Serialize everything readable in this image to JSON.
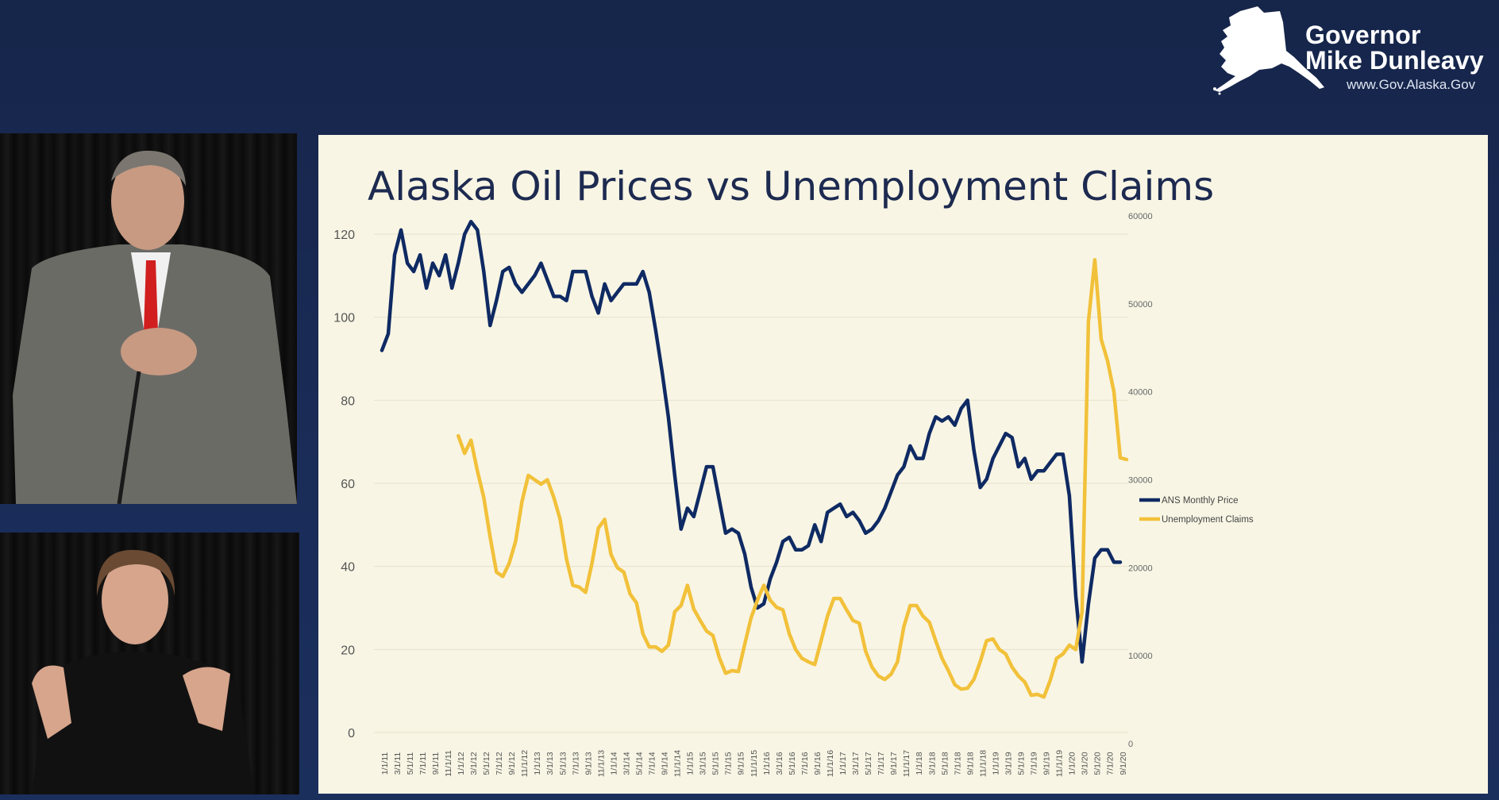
{
  "brand": {
    "line1": "Governor",
    "line2": "Mike Dunleavy",
    "url": "www.Gov.Alaska.Gov",
    "icon": "alaska-state-map-icon"
  },
  "slide": {
    "title": "Alaska Oil Prices vs Unemployment Claims"
  },
  "colors": {
    "background": "#1a2c58",
    "slide_background": "#f8f5e4",
    "oil_series": "#0f2a63",
    "claims_series": "#f2c13a",
    "title_text": "#1d2a50"
  },
  "chart_data": {
    "type": "line",
    "title": "Alaska Oil Prices vs Unemployment Claims",
    "x_tick_labels": [
      "1/1/11",
      "3/1/11",
      "5/1/11",
      "7/1/11",
      "9/1/11",
      "11/1/11",
      "1/1/12",
      "3/1/12",
      "5/1/12",
      "7/1/12",
      "9/1/12",
      "11/1/12",
      "1/1/13",
      "3/1/13",
      "5/1/13",
      "7/1/13",
      "9/1/13",
      "11/1/13",
      "1/1/14",
      "3/1/14",
      "5/1/14",
      "7/1/14",
      "9/1/14",
      "11/1/14",
      "1/1/15",
      "3/1/15",
      "5/1/15",
      "7/1/15",
      "9/1/15",
      "11/1/15",
      "1/1/16",
      "3/1/16",
      "5/1/16",
      "7/1/16",
      "9/1/16",
      "11/1/16",
      "1/1/17",
      "3/1/17",
      "5/1/17",
      "7/1/17",
      "9/1/17",
      "11/1/17",
      "1/1/18",
      "3/1/18",
      "5/1/18",
      "7/1/18",
      "9/1/18",
      "11/1/18",
      "1/1/19",
      "3/1/19",
      "5/1/19",
      "7/1/19",
      "9/1/19",
      "11/1/19",
      "1/1/20",
      "3/1/20",
      "5/1/20",
      "7/1/20",
      "9/1/20"
    ],
    "left_axis": {
      "ticks": [
        "0",
        "20",
        "40",
        "60",
        "80",
        "100",
        "120"
      ],
      "ylim": [
        0,
        120
      ]
    },
    "right_axis": {
      "ticks": [
        "0",
        "10000",
        "20000",
        "30000",
        "40000",
        "50000",
        "60000"
      ],
      "ylim": [
        0,
        60000
      ]
    },
    "grid": true,
    "legend_position": "right",
    "series": [
      {
        "name": "ANS Monthly Price",
        "axis": "left",
        "start_date": "2011-01-01",
        "values": [
          92,
          96,
          115,
          121,
          113,
          111,
          115,
          107,
          113,
          110,
          115,
          107,
          113,
          120,
          123,
          121,
          111,
          98,
          104,
          111,
          112,
          108,
          106,
          108,
          110,
          113,
          109,
          105,
          105,
          104,
          111,
          111,
          111,
          105,
          101,
          108,
          104,
          106,
          108,
          108,
          108,
          111,
          106,
          97,
          87,
          76,
          62,
          49,
          54,
          52,
          58,
          64,
          64,
          56,
          48,
          49,
          48,
          43,
          35,
          30,
          31,
          37,
          41,
          46,
          47,
          44,
          44,
          45,
          50,
          46,
          53,
          54,
          55,
          52,
          53,
          51,
          48,
          49,
          51,
          54,
          58,
          62,
          64,
          69,
          66,
          66,
          72,
          76,
          75,
          76,
          74,
          78,
          80,
          68,
          59,
          61,
          66,
          69,
          72,
          71,
          64,
          66,
          61,
          63,
          63,
          65,
          67,
          67,
          57,
          33,
          17,
          31,
          42,
          44,
          44,
          41,
          41
        ],
        "color": "#0f2a63"
      },
      {
        "name": "Unemployment Claims",
        "axis": "right",
        "start_date": "2012-01-01",
        "values": [
          35000,
          33000,
          34500,
          31000,
          28000,
          23500,
          19500,
          19000,
          20500,
          23000,
          27500,
          30500,
          30000,
          29500,
          30000,
          28000,
          25500,
          21000,
          18000,
          17800,
          17200,
          20500,
          24500,
          25500,
          21500,
          20000,
          19500,
          17000,
          16000,
          12500,
          11000,
          11000,
          10500,
          11200,
          15000,
          15700,
          18000,
          15300,
          14000,
          12800,
          12300,
          9800,
          8000,
          8300,
          8200,
          11300,
          14300,
          16300,
          18000,
          16300,
          15500,
          15200,
          12500,
          10700,
          9700,
          9300,
          9000,
          11700,
          14500,
          16500,
          16500,
          15200,
          14000,
          13700,
          10500,
          8700,
          7700,
          7300,
          7900,
          9300,
          13300,
          15700,
          15700,
          14500,
          13800,
          11700,
          9700,
          8300,
          6700,
          6200,
          6300,
          7300,
          9300,
          11700,
          11900,
          10700,
          10200,
          8700,
          7700,
          7000,
          5500,
          5600,
          5300,
          7200,
          9700,
          10200,
          11200,
          10700,
          15000,
          48000,
          55000,
          46000,
          43500,
          40000,
          32500,
          32300
        ],
        "color": "#f2c13a"
      }
    ]
  }
}
